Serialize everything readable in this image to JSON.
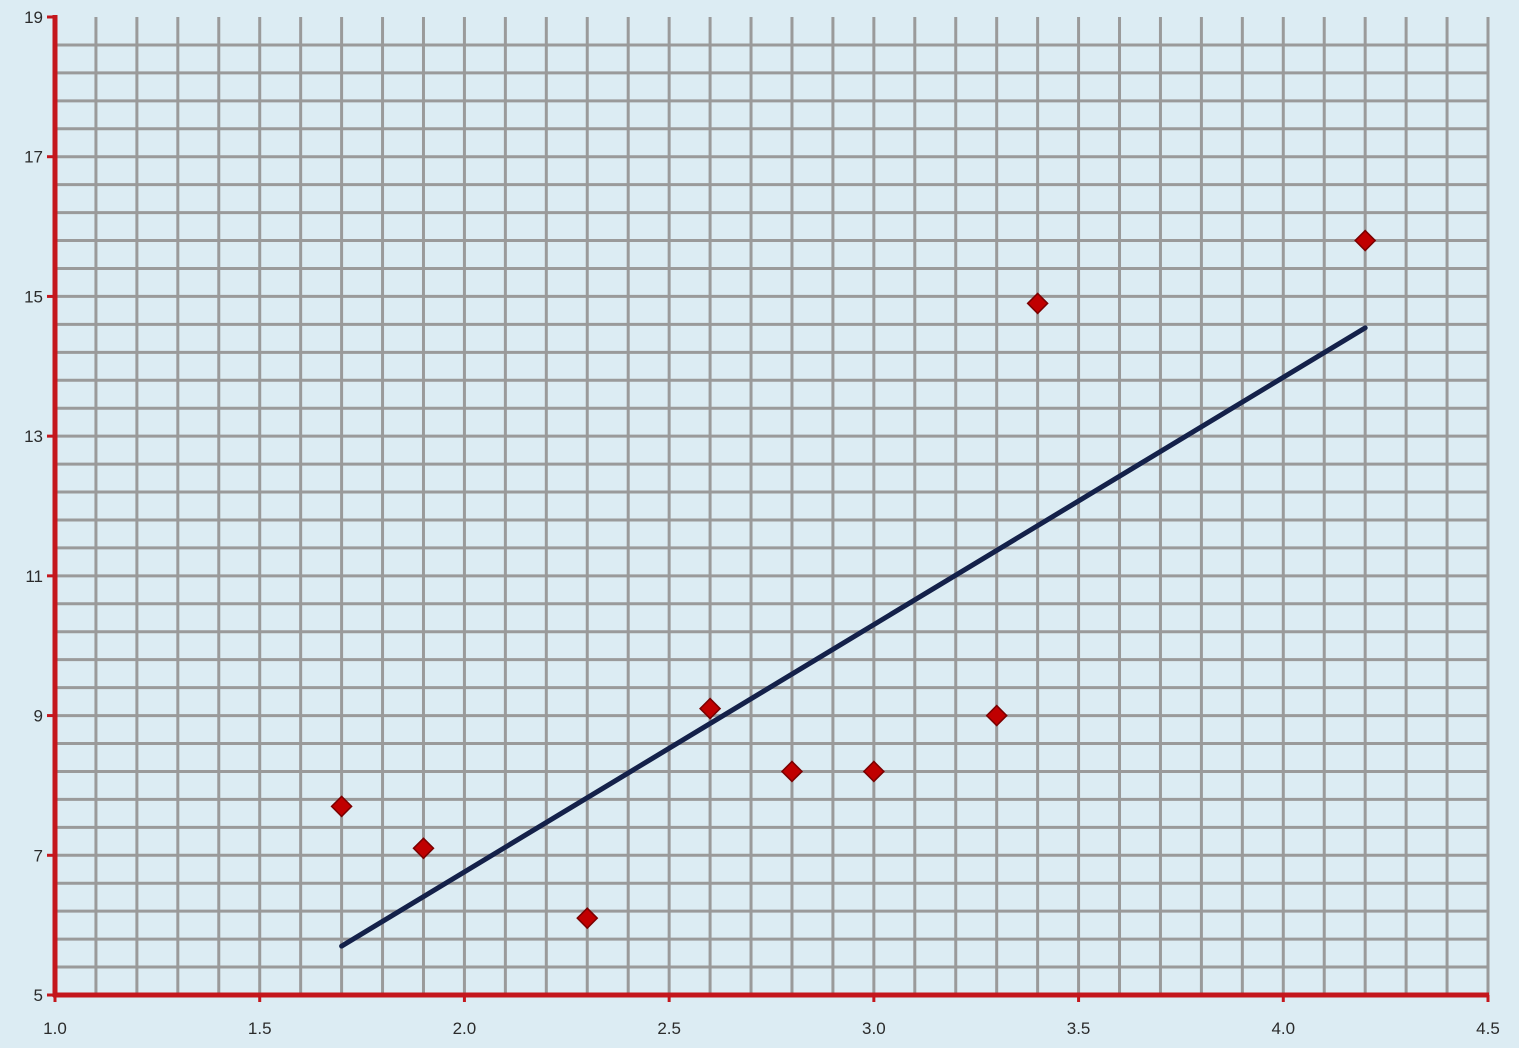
{
  "chart_data": {
    "type": "scatter",
    "title": "",
    "xlabel": "",
    "ylabel": "",
    "xlim": [
      1.0,
      4.5
    ],
    "ylim": [
      5,
      19
    ],
    "x_ticks": [
      "1.0",
      "1.5",
      "2.0",
      "2.5",
      "3.0",
      "3.5",
      "4.0",
      "4.5"
    ],
    "y_ticks": [
      "5",
      "7",
      "9",
      "11",
      "13",
      "15",
      "17",
      "19"
    ],
    "x_tick_values": [
      1.0,
      1.5,
      2.0,
      2.5,
      3.0,
      3.5,
      4.0,
      4.5
    ],
    "y_tick_values": [
      5,
      7,
      9,
      11,
      13,
      15,
      17,
      19
    ],
    "grid": true,
    "x_minor_step": 0.1,
    "y_minor_step": 0.4,
    "series": [
      {
        "type": "scatter",
        "marker": "diamond",
        "points": [
          {
            "x": 1.7,
            "y": 7.7
          },
          {
            "x": 1.9,
            "y": 7.1
          },
          {
            "x": 2.3,
            "y": 6.1
          },
          {
            "x": 2.6,
            "y": 9.1
          },
          {
            "x": 2.8,
            "y": 8.2
          },
          {
            "x": 3.0,
            "y": 8.2
          },
          {
            "x": 3.3,
            "y": 9.0
          },
          {
            "x": 3.4,
            "y": 14.9
          },
          {
            "x": 4.2,
            "y": 15.8
          }
        ]
      },
      {
        "type": "line",
        "role": "trendline",
        "points": [
          {
            "x": 1.7,
            "y": 5.7
          },
          {
            "x": 4.2,
            "y": 14.55
          }
        ]
      }
    ],
    "colors": {
      "background": "#dcecf3",
      "grid": "#9a9a9a",
      "axis": "#c4161c",
      "marker": "#c00000",
      "marker_edge": "#7a0000",
      "trendline": "#14214a"
    }
  }
}
